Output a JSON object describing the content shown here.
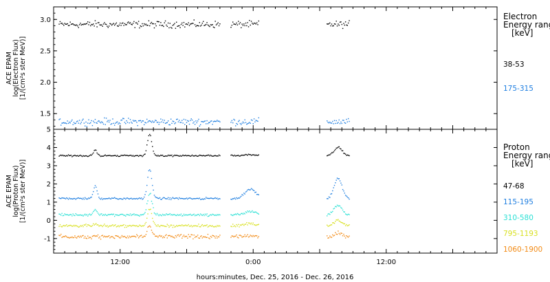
{
  "colors": {
    "black": "#000000",
    "blue": "#1e7ee0",
    "cyan": "#29e0d4",
    "yellow": "#d8e020",
    "orange": "#f28a14"
  },
  "xaxis": {
    "title": "hours:minutes, Dec. 25, 2016 - Dec. 26, 2016",
    "start": "2016-12-25T06:00",
    "end": "2016-12-26T22:00",
    "ticks": [
      {
        "label": "12:00",
        "t": "2016-12-25T12:00"
      },
      {
        "label": "0:00",
        "t": "2016-12-26T00:00"
      },
      {
        "label": "12:00",
        "t": "2016-12-26T12:00"
      }
    ]
  },
  "chart_data": [
    {
      "type": "scatter",
      "panel": "electron",
      "ylabel_lines": [
        "ACE EPAM",
        "log(Electron Flux)",
        "[1/(cm²s ster MeV)]"
      ],
      "ylim": [
        1.25,
        3.2
      ],
      "yticks": [
        "1.5",
        "2.0",
        "2.5",
        "3.0"
      ],
      "legend": {
        "title_lines": [
          "Electron",
          "Energy ranges",
          "[keV]"
        ],
        "unit_bracket": "[keV]"
      },
      "data_segments": [
        {
          "start": "2016-12-25T06:30",
          "end": "2016-12-25T21:00"
        },
        {
          "start": "2016-12-25T22:00",
          "end": "2016-12-26T00:30"
        },
        {
          "start": "2016-12-26T06:40",
          "end": "2016-12-26T08:40"
        }
      ],
      "series": [
        {
          "name": "38-53",
          "color_key": "black",
          "base": 2.92,
          "noise": 0.05
        },
        {
          "name": "175-315",
          "color_key": "blue",
          "base": 1.37,
          "noise": 0.05
        }
      ]
    },
    {
      "type": "scatter",
      "panel": "proton",
      "ylabel_lines": [
        "ACE EPAM",
        "log(Proton Flux)",
        "[1/(cm²s ster MeV)]"
      ],
      "ylim": [
        -1.8,
        5
      ],
      "yticks": [
        "-1",
        "0",
        "1",
        "2",
        "3",
        "4",
        "5"
      ],
      "legend": {
        "title_lines": [
          "Proton",
          "Energy ranges",
          "[keV]"
        ],
        "unit_bracket": "[keV]"
      },
      "data_segments": [
        {
          "start": "2016-12-25T06:30",
          "end": "2016-12-25T21:00"
        },
        {
          "start": "2016-12-25T22:00",
          "end": "2016-12-26T00:30"
        },
        {
          "start": "2016-12-26T06:40",
          "end": "2016-12-26T08:40"
        }
      ],
      "series": [
        {
          "name": "47-68",
          "color_key": "black",
          "base": 3.55,
          "noise": 0.04
        },
        {
          "name": "115-195",
          "color_key": "blue",
          "base": 1.2,
          "noise": 0.05
        },
        {
          "name": "310-580",
          "color_key": "cyan",
          "base": 0.3,
          "noise": 0.06
        },
        {
          "name": "795-1193",
          "color_key": "yellow",
          "base": -0.3,
          "noise": 0.07
        },
        {
          "name": "1060-1900",
          "color_key": "orange",
          "base": -0.9,
          "noise": 0.1
        }
      ]
    }
  ]
}
